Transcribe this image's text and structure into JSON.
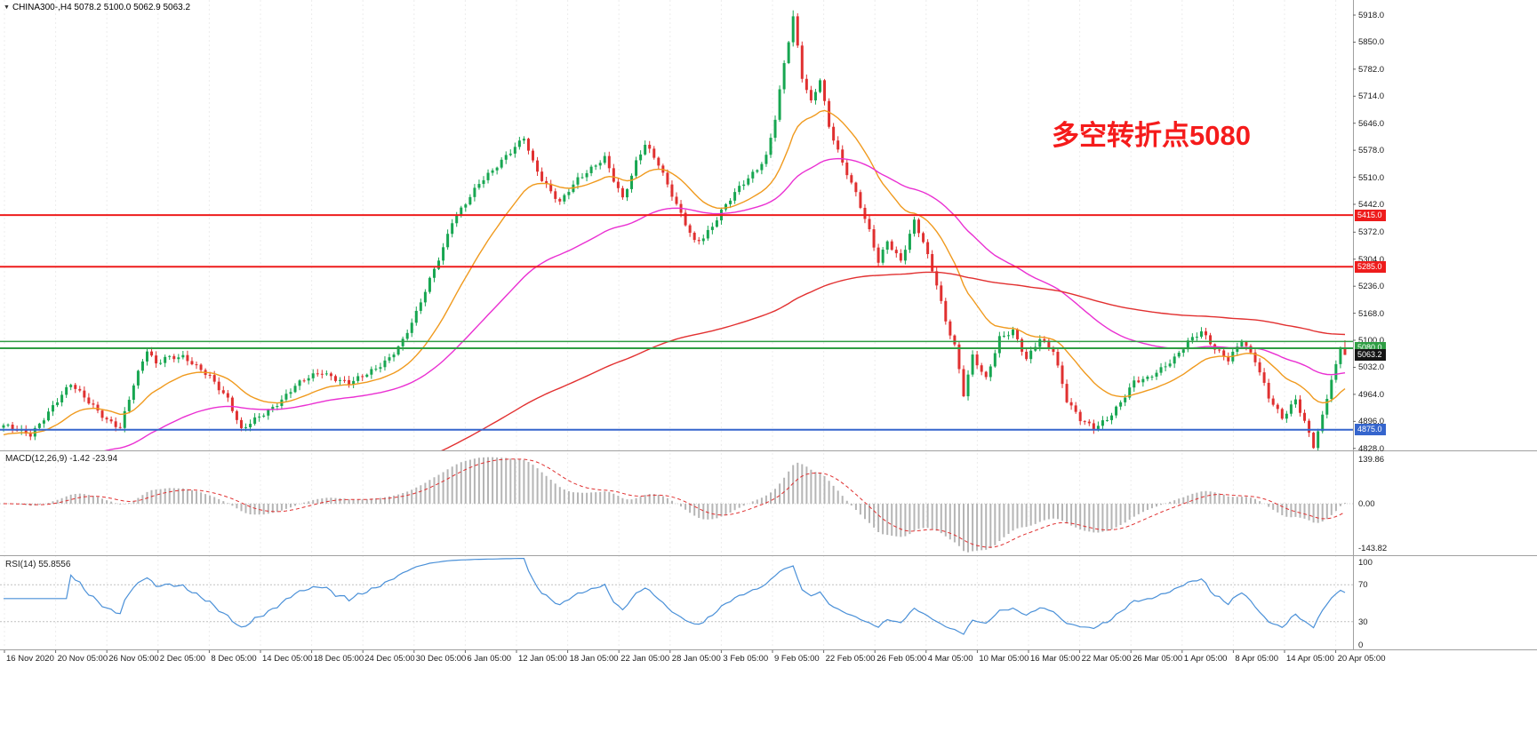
{
  "header": {
    "symbol_info": "CHINA300-,H4 5078.2 5100.0 5062.9 5063.2"
  },
  "annotation": {
    "text": "多空转折点5080",
    "color": "#f51b1b"
  },
  "chart_data": {
    "type": "candlestick",
    "symbol": "CHINA300-",
    "timeframe": "H4",
    "ohlc_current": {
      "open": 5078.2,
      "high": 5100.0,
      "low": 5062.9,
      "close": 5063.2
    },
    "price_range": [
      4823,
      5956
    ],
    "price_axis": [
      "5918.0",
      "5850.0",
      "5782.0",
      "5714.0",
      "5646.0",
      "5578.0",
      "5510.0",
      "5442.0",
      "5372.0",
      "5304.0",
      "5236.0",
      "5168.0",
      "5100.0",
      "5032.0",
      "4964.0",
      "4896.0",
      "4828.0"
    ],
    "time_axis": [
      "16 Nov 2020",
      "20 Nov 05:00",
      "26 Nov 05:00",
      "2 Dec 05:00",
      "8 Dec 05:00",
      "14 Dec 05:00",
      "18 Dec 05:00",
      "24 Dec 05:00",
      "30 Dec 05:00",
      "6 Jan 05:00",
      "12 Jan 05:00",
      "18 Jan 05:00",
      "22 Jan 05:00",
      "28 Jan 05:00",
      "3 Feb 05:00",
      "9 Feb 05:00",
      "22 Feb 05:00",
      "26 Feb 05:00",
      "4 Mar 05:00",
      "10 Mar 05:00",
      "16 Mar 05:00",
      "22 Mar 05:00",
      "26 Mar 05:00",
      "1 Apr 05:00",
      "8 Apr 05:00",
      "14 Apr 05:00",
      "20 Apr 05:00"
    ],
    "horizontal_lines": [
      {
        "price": 5415.0,
        "label": "5415.0",
        "color": "#ee1c1c",
        "width": 2
      },
      {
        "price": 5285.0,
        "label": "5285.0",
        "color": "#ee1c1c",
        "width": 2
      },
      {
        "price": 5097.0,
        "label": "",
        "color": "#2f9e44",
        "width": 1.5
      },
      {
        "price": 5080.0,
        "label": "5080.0",
        "color": "#2f9e44",
        "width": 2
      },
      {
        "price": 4875.0,
        "label": "4875.0",
        "color": "#3565cd",
        "width": 2
      }
    ],
    "current_price": {
      "value": 5063.2,
      "label": "5063.2",
      "badge_color": "#141414"
    },
    "num_candles": 300,
    "close_anchors": [
      [
        0,
        4880
      ],
      [
        3,
        4870
      ],
      [
        6,
        4862
      ],
      [
        10,
        4920
      ],
      [
        15,
        4990
      ],
      [
        18,
        4960
      ],
      [
        20,
        4940
      ],
      [
        23,
        4905
      ],
      [
        26,
        4882
      ],
      [
        29,
        4990
      ],
      [
        32,
        5080
      ],
      [
        34,
        5045
      ],
      [
        36,
        5060
      ],
      [
        40,
        5055
      ],
      [
        43,
        5030
      ],
      [
        46,
        5008
      ],
      [
        50,
        4950
      ],
      [
        53,
        4868
      ],
      [
        56,
        4895
      ],
      [
        59,
        4920
      ],
      [
        62,
        4950
      ],
      [
        65,
        4985
      ],
      [
        68,
        5005
      ],
      [
        71,
        5020
      ],
      [
        74,
        5008
      ],
      [
        77,
        4998
      ],
      [
        80,
        5012
      ],
      [
        83,
        5030
      ],
      [
        86,
        5060
      ],
      [
        89,
        5105
      ],
      [
        92,
        5170
      ],
      [
        95,
        5250
      ],
      [
        98,
        5330
      ],
      [
        100,
        5400
      ],
      [
        103,
        5445
      ],
      [
        106,
        5490
      ],
      [
        109,
        5520
      ],
      [
        112,
        5560
      ],
      [
        114,
        5585
      ],
      [
        116,
        5610
      ],
      [
        118,
        5545
      ],
      [
        120,
        5500
      ],
      [
        122,
        5470
      ],
      [
        124,
        5445
      ],
      [
        126,
        5480
      ],
      [
        128,
        5510
      ],
      [
        131,
        5535
      ],
      [
        134,
        5560
      ],
      [
        136,
        5505
      ],
      [
        138,
        5460
      ],
      [
        140,
        5520
      ],
      [
        141,
        5555
      ],
      [
        143,
        5600
      ],
      [
        146,
        5545
      ],
      [
        148,
        5490
      ],
      [
        150,
        5440
      ],
      [
        152,
        5395
      ],
      [
        154,
        5350
      ],
      [
        156,
        5360
      ],
      [
        158,
        5385
      ],
      [
        160,
        5420
      ],
      [
        162,
        5450
      ],
      [
        164,
        5480
      ],
      [
        166,
        5505
      ],
      [
        168,
        5530
      ],
      [
        170,
        5560
      ],
      [
        172,
        5655
      ],
      [
        174,
        5790
      ],
      [
        176,
        5908
      ],
      [
        178,
        5760
      ],
      [
        180,
        5700
      ],
      [
        182,
        5760
      ],
      [
        184,
        5640
      ],
      [
        187,
        5545
      ],
      [
        190,
        5470
      ],
      [
        193,
        5380
      ],
      [
        195,
        5305
      ],
      [
        197,
        5355
      ],
      [
        200,
        5300
      ],
      [
        203,
        5400
      ],
      [
        205,
        5350
      ],
      [
        208,
        5245
      ],
      [
        210,
        5150
      ],
      [
        212,
        5085
      ],
      [
        214,
        4960
      ],
      [
        216,
        5055
      ],
      [
        219,
        5000
      ],
      [
        222,
        5105
      ],
      [
        225,
        5120
      ],
      [
        228,
        5045
      ],
      [
        231,
        5100
      ],
      [
        234,
        5075
      ],
      [
        237,
        4950
      ],
      [
        240,
        4900
      ],
      [
        243,
        4878
      ],
      [
        246,
        4905
      ],
      [
        249,
        4950
      ],
      [
        252,
        5000
      ],
      [
        255,
        5005
      ],
      [
        258,
        5030
      ],
      [
        261,
        5060
      ],
      [
        264,
        5100
      ],
      [
        267,
        5120
      ],
      [
        270,
        5075
      ],
      [
        273,
        5050
      ],
      [
        276,
        5100
      ],
      [
        279,
        5045
      ],
      [
        282,
        4950
      ],
      [
        285,
        4900
      ],
      [
        288,
        4950
      ],
      [
        290,
        4895
      ],
      [
        292,
        4832
      ],
      [
        294,
        4905
      ],
      [
        296,
        5000
      ],
      [
        297,
        5040
      ],
      [
        298,
        5078.2
      ],
      [
        299,
        5063.2
      ]
    ],
    "moving_averages": [
      {
        "name": "fast-ma",
        "period": 20,
        "color": "#f09a1e",
        "seed": 4860
      },
      {
        "name": "medium-ma",
        "period": 60,
        "color": "#ea30d2",
        "seed": 4700
      },
      {
        "name": "slow-ma",
        "period": 200,
        "color": "#e23030",
        "seed": 4500
      }
    ],
    "macd": {
      "label": "MACD(12,26,9) -1.42 -23.94",
      "fast": 12,
      "slow": 26,
      "signal": 9,
      "values_current": [
        -1.42,
        -23.94
      ],
      "axis": [
        "139.86",
        "0.00",
        "-143.82"
      ]
    },
    "rsi": {
      "label": "RSI(14) 55.8556",
      "period": 14,
      "value_current": 55.8556,
      "axis": [
        "100",
        "70",
        "30",
        "0"
      ],
      "levels": [
        70,
        30
      ]
    },
    "colors": {
      "candle_up": "#17a651",
      "candle_down": "#e03030",
      "macd_hist": "#b5b5b5",
      "macd_signal": "#e03030",
      "rsi_line": "#4a90d8",
      "grid": "#ececec",
      "panel_border": "#a0a0a0"
    }
  }
}
